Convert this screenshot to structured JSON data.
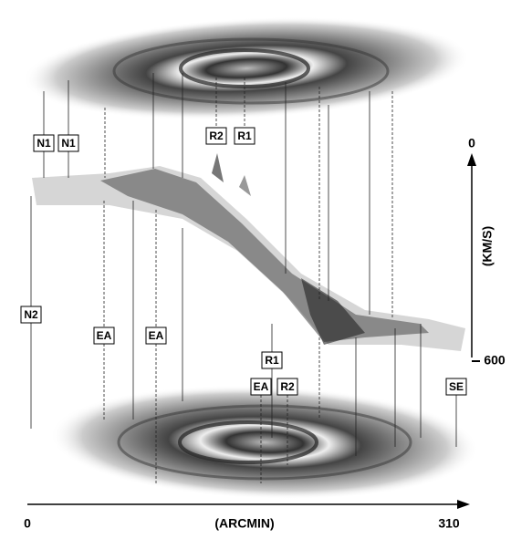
{
  "labels": {
    "top": [
      "N1",
      "N1",
      "R2",
      "R1"
    ],
    "bottom": [
      "N2",
      "EA",
      "EA",
      "R1",
      "EA",
      "R2",
      "SE"
    ]
  },
  "velocity_axis": {
    "top": "0",
    "title": "(KM/S)",
    "bottom": "600"
  },
  "position_axis": {
    "start": "0",
    "title": "(ARCMIN)",
    "end": "310"
  }
}
